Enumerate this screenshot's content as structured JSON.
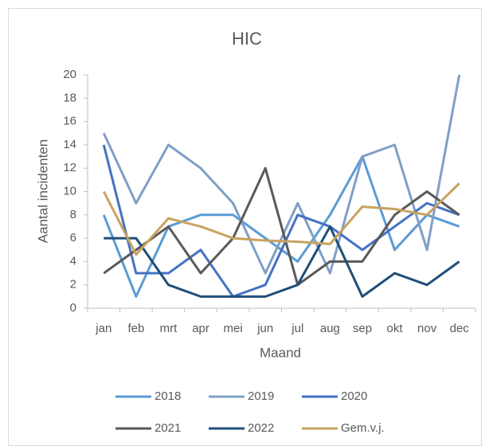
{
  "chart_data": {
    "type": "line",
    "title": "HIC",
    "x_label": "Maand",
    "y_label": "Aantal incidenten",
    "categories": [
      "jan",
      "feb",
      "mrt",
      "apr",
      "mei",
      "jun",
      "jul",
      "aug",
      "sep",
      "okt",
      "nov",
      "dec"
    ],
    "ylim": [
      0,
      20
    ],
    "yticks": [
      0,
      2,
      4,
      6,
      8,
      10,
      12,
      14,
      16,
      18,
      20
    ],
    "grid": false,
    "legend": "bottom",
    "series": [
      {
        "name": "2018",
        "color": "#5b9bd5",
        "values": [
          8,
          1,
          7,
          8,
          8,
          6,
          4,
          8,
          13,
          5,
          8,
          7
        ]
      },
      {
        "name": "2019",
        "color": "#7f9fc6",
        "values": [
          15,
          9,
          14,
          12,
          9,
          3,
          9,
          3,
          13,
          14,
          5,
          20
        ]
      },
      {
        "name": "2020",
        "color": "#4472c4",
        "values": [
          14,
          3,
          3,
          5,
          1,
          2,
          8,
          7,
          5,
          7,
          9,
          8
        ]
      },
      {
        "name": "2021",
        "color": "#595959",
        "values": [
          3,
          5,
          7,
          3,
          6,
          12,
          2,
          4,
          4,
          8,
          10,
          8
        ]
      },
      {
        "name": "2022",
        "color": "#1f4e79",
        "values": [
          6,
          6,
          2,
          1,
          1,
          1,
          2,
          7,
          1,
          3,
          2,
          4
        ]
      },
      {
        "name": "Gem.v.j.",
        "color": "#c9a25f",
        "values": [
          10,
          4.6,
          7.7,
          7,
          6,
          5.8,
          5.7,
          5.5,
          8.7,
          8.5,
          8,
          10.7
        ]
      }
    ]
  }
}
